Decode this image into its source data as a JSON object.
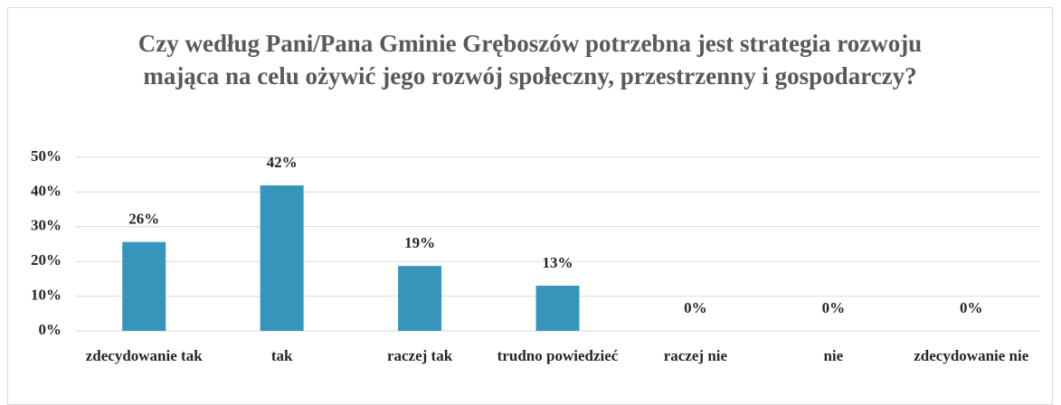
{
  "chart_data": {
    "type": "bar",
    "title": "Czy według Pani/Pana Gminie Gręboszów potrzebna jest strategia rozwoju mająca na celu ożywić jego rozwój społeczny, przestrzenny i gospodarczy?",
    "categories": [
      "zdecydowanie tak",
      "tak",
      "raczej tak",
      "trudno powiedzieć",
      "raczej nie",
      "nie",
      "zdecydowanie nie"
    ],
    "values": [
      25.6,
      41.9,
      18.7,
      13.0,
      0,
      0,
      0
    ],
    "value_labels": [
      "26%",
      "42%",
      "19%",
      "13%",
      "0%",
      "0%",
      "0%"
    ],
    "color": "#3795bb",
    "ylim": [
      0,
      50
    ],
    "yticks": [
      {
        "value": 0,
        "label": "0%"
      },
      {
        "value": 10,
        "label": "10%"
      },
      {
        "value": 20,
        "label": "20%"
      },
      {
        "value": 30,
        "label": "30%"
      },
      {
        "value": 40,
        "label": "40%"
      },
      {
        "value": 50,
        "label": "50%"
      }
    ],
    "grid": true
  }
}
